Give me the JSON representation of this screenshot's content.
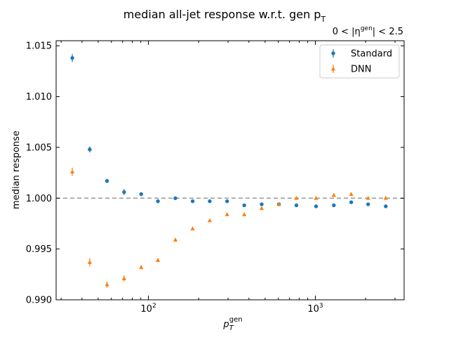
{
  "chart_data": {
    "type": "scatter",
    "title_main": "median all-jet response w.r.t. gen p",
    "title_sub": "T",
    "eta_label": "0 < |η",
    "eta_sup": "gen",
    "eta_tail": "| < 2.5",
    "xlabel_main": "p",
    "xlabel_sub": "T",
    "xlabel_sup": "gen",
    "ylabel": "median response",
    "xscale": "log",
    "xlim": [
      28,
      3400
    ],
    "ylim": [
      0.99,
      1.0155
    ],
    "y_ticks": [
      {
        "value": 0.99,
        "label": "0.990"
      },
      {
        "value": 0.995,
        "label": "0.995"
      },
      {
        "value": 1.0,
        "label": "1.000"
      },
      {
        "value": 1.005,
        "label": "1.005"
      },
      {
        "value": 1.01,
        "label": "1.010"
      },
      {
        "value": 1.015,
        "label": "1.015"
      }
    ],
    "x_ticks": [
      {
        "value": 100,
        "base": "10",
        "exp": "2"
      },
      {
        "value": 1000,
        "base": "10",
        "exp": "3"
      }
    ],
    "reference_line": 1.0,
    "legend_position": "upper right",
    "series": [
      {
        "name": "Standard",
        "color": "#1f77b4",
        "marker": "circle",
        "points": [
          {
            "x": 35,
            "y": 1.0138,
            "err": 0.0004
          },
          {
            "x": 44.5,
            "y": 1.0048,
            "err": 0.0003
          },
          {
            "x": 56.5,
            "y": 1.0017,
            "err": 0.0002
          },
          {
            "x": 71.5,
            "y": 1.0006,
            "err": 0.0003
          },
          {
            "x": 90.5,
            "y": 1.0004,
            "err": 0.0002
          },
          {
            "x": 114,
            "y": 0.9997,
            "err": 0.0002
          },
          {
            "x": 145,
            "y": 1.0,
            "err": 0.00015
          },
          {
            "x": 184,
            "y": 0.9997,
            "err": 0.00015
          },
          {
            "x": 233,
            "y": 0.9997,
            "err": 0.0001
          },
          {
            "x": 296,
            "y": 0.9997,
            "err": 0.0001
          },
          {
            "x": 375,
            "y": 0.9993,
            "err": 0.0001
          },
          {
            "x": 477,
            "y": 0.9994,
            "err": 0.0001
          },
          {
            "x": 605,
            "y": 0.9994,
            "err": 0.0001
          },
          {
            "x": 770,
            "y": 0.9993,
            "err": 0.0001
          },
          {
            "x": 1010,
            "y": 0.9992,
            "err": 0.0001
          },
          {
            "x": 1290,
            "y": 0.9993,
            "err": 0.0001
          },
          {
            "x": 1640,
            "y": 0.9996,
            "err": 0.0001
          },
          {
            "x": 2070,
            "y": 0.9994,
            "err": 0.0001
          },
          {
            "x": 2640,
            "y": 0.9992,
            "err": 0.0001
          }
        ]
      },
      {
        "name": "DNN",
        "color": "#ff7f0e",
        "marker": "triangle",
        "points": [
          {
            "x": 35,
            "y": 1.0026,
            "err": 0.0004
          },
          {
            "x": 44.5,
            "y": 0.9937,
            "err": 0.0004
          },
          {
            "x": 56.5,
            "y": 0.9915,
            "err": 0.0003
          },
          {
            "x": 71.5,
            "y": 0.9921,
            "err": 0.0003
          },
          {
            "x": 90.5,
            "y": 0.9932,
            "err": 0.0002
          },
          {
            "x": 114,
            "y": 0.9939,
            "err": 0.0002
          },
          {
            "x": 145,
            "y": 0.9959,
            "err": 0.0002
          },
          {
            "x": 184,
            "y": 0.997,
            "err": 0.00015
          },
          {
            "x": 233,
            "y": 0.9978,
            "err": 0.00015
          },
          {
            "x": 296,
            "y": 0.9984,
            "err": 0.0001
          },
          {
            "x": 375,
            "y": 0.9984,
            "err": 0.0001
          },
          {
            "x": 477,
            "y": 0.999,
            "err": 0.0001
          },
          {
            "x": 605,
            "y": 0.9994,
            "err": 0.0001
          },
          {
            "x": 770,
            "y": 1.0,
            "err": 0.0001
          },
          {
            "x": 1010,
            "y": 1.0,
            "err": 0.0001
          },
          {
            "x": 1290,
            "y": 1.0003,
            "err": 0.0001
          },
          {
            "x": 1640,
            "y": 1.0004,
            "err": 0.0001
          },
          {
            "x": 2070,
            "y": 1.0,
            "err": 0.0001
          },
          {
            "x": 2640,
            "y": 1.0,
            "err": 0.0001
          }
        ]
      }
    ]
  }
}
